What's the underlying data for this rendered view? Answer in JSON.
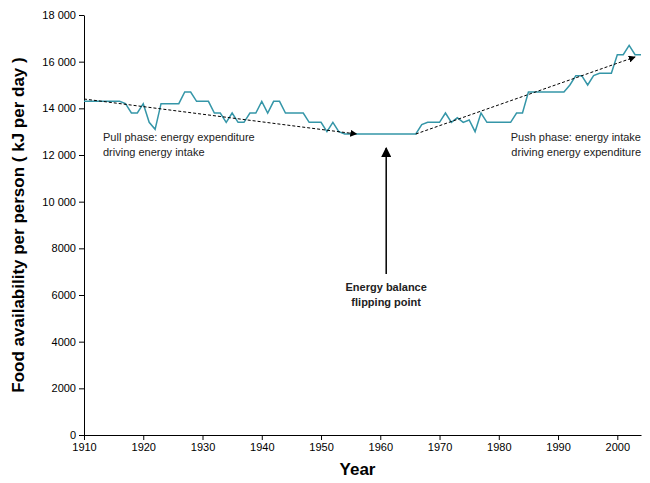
{
  "chart_data": {
    "type": "line",
    "x_label": "Year",
    "y_label": "Food availability per person ( kJ per day )",
    "x": [
      1910,
      1911,
      1912,
      1913,
      1914,
      1915,
      1916,
      1917,
      1918,
      1919,
      1920,
      1921,
      1922,
      1923,
      1924,
      1925,
      1926,
      1927,
      1928,
      1929,
      1930,
      1931,
      1932,
      1933,
      1934,
      1935,
      1936,
      1937,
      1938,
      1939,
      1940,
      1941,
      1942,
      1943,
      1944,
      1945,
      1946,
      1947,
      1948,
      1949,
      1950,
      1951,
      1952,
      1953,
      1954,
      1955,
      1956,
      1957,
      1958,
      1959,
      1960,
      1961,
      1962,
      1963,
      1964,
      1965,
      1966,
      1967,
      1968,
      1969,
      1970,
      1971,
      1972,
      1973,
      1974,
      1975,
      1976,
      1977,
      1978,
      1979,
      1980,
      1981,
      1982,
      1983,
      1984,
      1985,
      1986,
      1987,
      1988,
      1989,
      1990,
      1991,
      1992,
      1993,
      1994,
      1995,
      1996,
      1997,
      1998,
      1999,
      2000,
      2001,
      2002,
      2003,
      2004
    ],
    "series": [
      {
        "color": "#3596a8",
        "line_style": "solid",
        "values": [
          14300,
          14300,
          14300,
          14300,
          14300,
          14300,
          14300,
          14200,
          13800,
          13800,
          14200,
          13400,
          13100,
          14200,
          14200,
          14200,
          14200,
          14700,
          14700,
          14300,
          14300,
          14300,
          13800,
          13800,
          13400,
          13800,
          13400,
          13400,
          13800,
          13800,
          14300,
          13800,
          14300,
          14300,
          13800,
          13800,
          13800,
          13800,
          13400,
          13400,
          13400,
          13000,
          13400,
          13000,
          12900,
          12900,
          12900,
          12900,
          12900,
          12900,
          12900,
          12900,
          12900,
          12900,
          12900,
          12900,
          12900,
          13300,
          13400,
          13400,
          13400,
          13800,
          13400,
          13600,
          13400,
          13500,
          13000,
          13800,
          13400,
          13400,
          13400,
          13400,
          13400,
          13800,
          13800,
          14700,
          14700,
          14700,
          14700,
          14700,
          14700,
          14700,
          15000,
          15400,
          15400,
          15000,
          15400,
          15500,
          15500,
          15500,
          16300,
          16300,
          16700,
          16300,
          16300
        ]
      }
    ],
    "xlim": [
      1910,
      2004
    ],
    "xticks": [
      1910,
      1920,
      1930,
      1940,
      1950,
      1960,
      1970,
      1980,
      1990,
      2000
    ],
    "ylim": [
      0,
      18000
    ],
    "yticks": [
      0,
      2000,
      4000,
      6000,
      8000,
      {
        "value": 10000,
        "label": "10 000"
      },
      {
        "value": 12000,
        "label": "12 000"
      },
      {
        "value": 14000,
        "label": "14 000"
      },
      {
        "value": 16000,
        "label": "16 000"
      },
      {
        "value": 18000,
        "label": "18 000"
      }
    ],
    "grid": false,
    "annotations": [
      {
        "lines": [
          "Pull phase: energy expenditure",
          "driving energy intake"
        ],
        "x": [
          1910,
          1956
        ],
        "y": [
          14400,
          12900
        ],
        "line_style": "dashed"
      },
      {
        "lines": [
          "Push phase: energy intake",
          "driving energy expenditure"
        ],
        "x": [
          1966,
          2003
        ],
        "y": [
          12900,
          16200
        ],
        "line_style": "dashed"
      },
      {
        "lines": [
          "Energy balance",
          "flipping point"
        ],
        "x": [
          1961,
          1961
        ],
        "y": [
          6900,
          12300
        ],
        "line_style": "solid"
      }
    ]
  }
}
